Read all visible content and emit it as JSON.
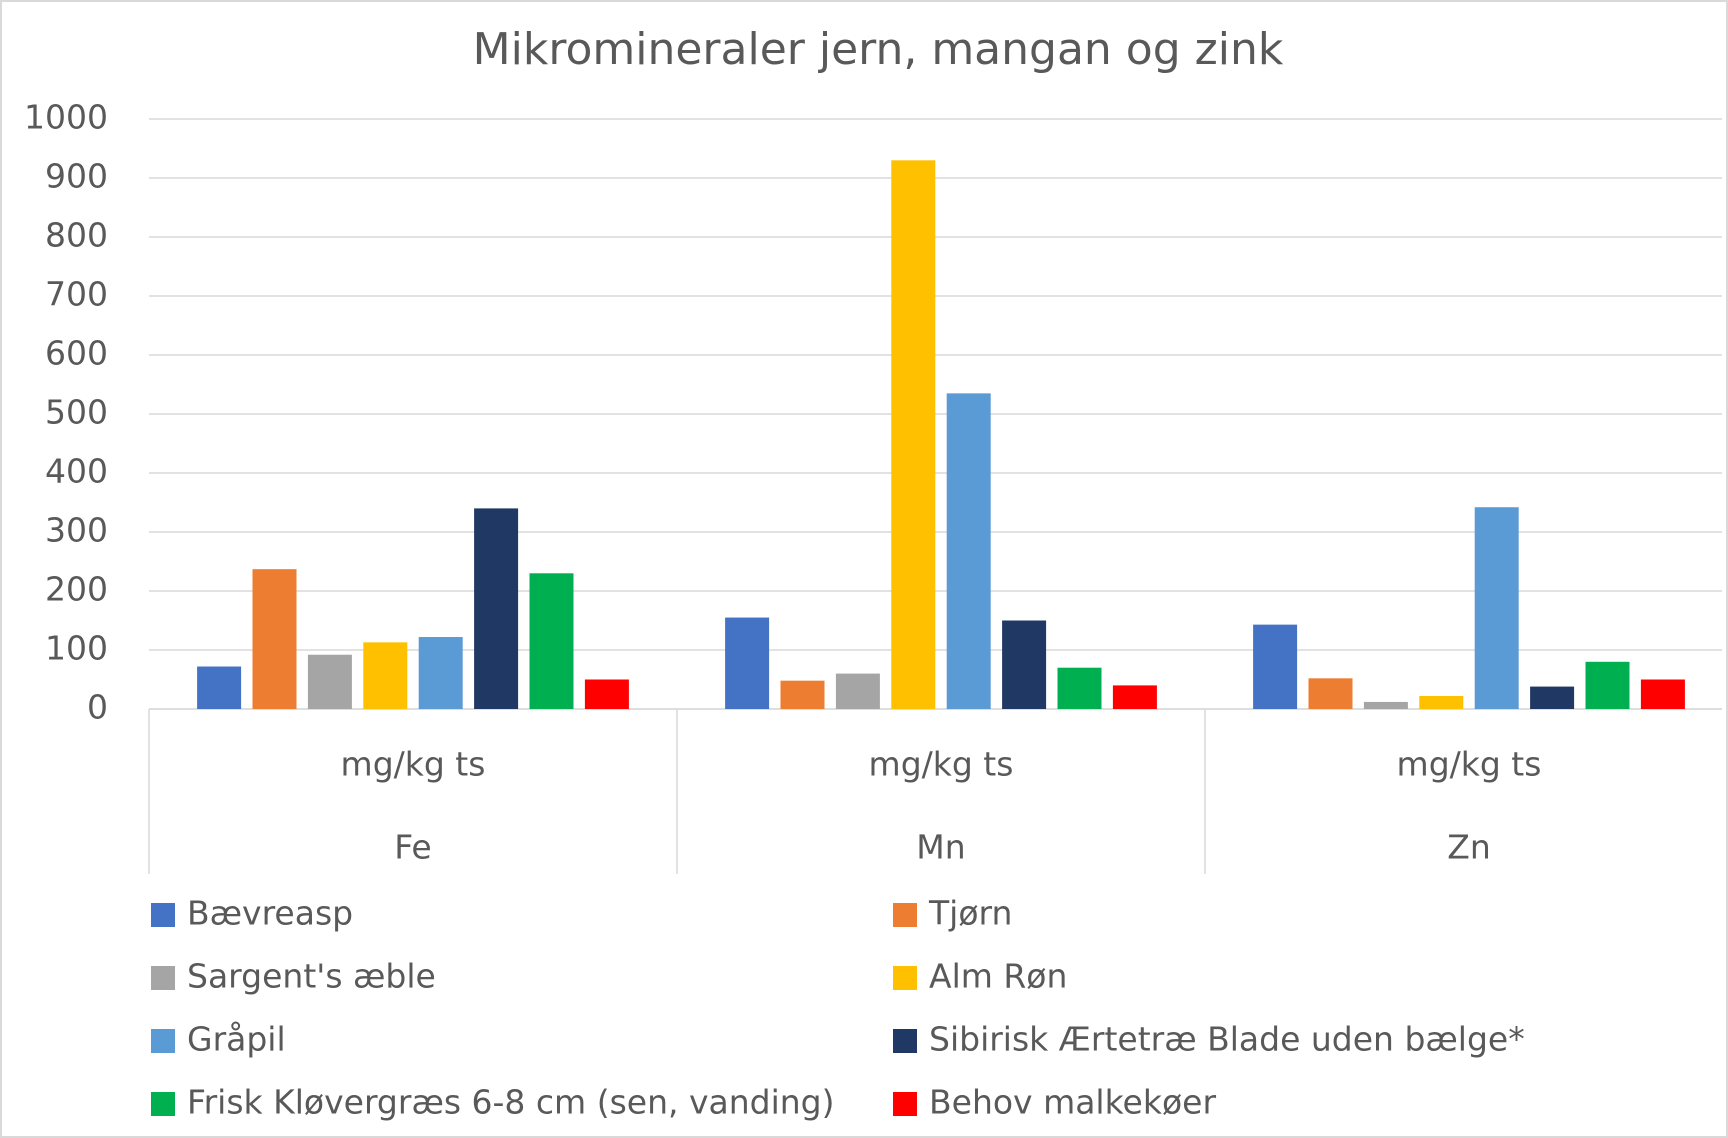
{
  "chart_data": {
    "type": "bar",
    "title": "Mikromineraler jern, mangan og zink",
    "categories": [
      "Fe",
      "Mn",
      "Zn"
    ],
    "subcategories": [
      "mg/kg ts",
      "mg/kg ts",
      "mg/kg ts"
    ],
    "series": [
      {
        "name": "Bævreasp",
        "color": "#4472c4",
        "values": [
          72,
          155,
          143
        ]
      },
      {
        "name": "Tjørn",
        "color": "#ed7d31",
        "values": [
          237,
          48,
          52
        ]
      },
      {
        "name": "Sargent's æble",
        "color": "#a5a5a5",
        "values": [
          92,
          60,
          12
        ]
      },
      {
        "name": "Alm Røn",
        "color": "#ffc000",
        "values": [
          113,
          930,
          22
        ]
      },
      {
        "name": "Gråpil",
        "color": "#5b9bd5",
        "values": [
          122,
          535,
          342
        ]
      },
      {
        "name": "Sibirisk Ærtetræ Blade uden bælge*",
        "color": "#203864",
        "values": [
          340,
          150,
          38
        ]
      },
      {
        "name": "Frisk Kløvergræs 6-8 cm (sen, vanding)",
        "color": "#00b050",
        "values": [
          230,
          70,
          80
        ]
      },
      {
        "name": "Behov malkekøer",
        "color": "#ff0000",
        "values": [
          50,
          40,
          50
        ]
      }
    ],
    "ylim": [
      0,
      1000
    ],
    "yticks": [
      0,
      100,
      200,
      300,
      400,
      500,
      600,
      700,
      800,
      900,
      1000
    ],
    "grid": true,
    "legend": "bottom"
  }
}
